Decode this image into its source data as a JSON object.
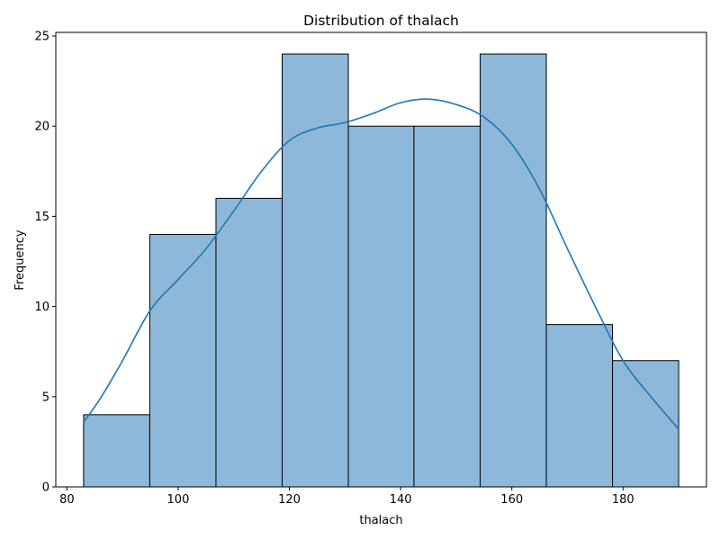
{
  "chart_data": {
    "type": "bar",
    "title": "Distribution of thalach",
    "xlabel": "thalach",
    "ylabel": "Frequency",
    "xlim": [
      78,
      195
    ],
    "ylim": [
      0,
      25.2
    ],
    "xticks": [
      80,
      100,
      120,
      140,
      160,
      180
    ],
    "yticks": [
      0,
      5,
      10,
      15,
      20,
      25
    ],
    "grid": false,
    "bar_color": "#8db8d9",
    "edge_color": "#000000",
    "kde_color": "#1f77b4",
    "bins": [
      {
        "x0": 83.0,
        "x1": 94.9,
        "count": 4
      },
      {
        "x0": 94.9,
        "x1": 106.8,
        "count": 14
      },
      {
        "x0": 106.8,
        "x1": 118.7,
        "count": 16
      },
      {
        "x0": 118.7,
        "x1": 130.6,
        "count": 24
      },
      {
        "x0": 130.6,
        "x1": 142.4,
        "count": 20
      },
      {
        "x0": 142.4,
        "x1": 154.3,
        "count": 20
      },
      {
        "x0": 154.3,
        "x1": 166.2,
        "count": 24
      },
      {
        "x0": 166.2,
        "x1": 178.1,
        "count": 9
      },
      {
        "x0": 178.1,
        "x1": 190.0,
        "count": 7
      }
    ],
    "kde": {
      "x": [
        83,
        86,
        90,
        95,
        100,
        105,
        110,
        115,
        120,
        125,
        130,
        135,
        140,
        145,
        150,
        155,
        160,
        165,
        170,
        175,
        180,
        185,
        190
      ],
      "y": [
        3.6,
        4.9,
        7.0,
        9.8,
        11.5,
        13.2,
        15.3,
        17.5,
        19.2,
        19.9,
        20.2,
        20.7,
        21.3,
        21.5,
        21.2,
        20.5,
        19.0,
        16.5,
        13.2,
        10.0,
        7.0,
        5.0,
        3.2
      ]
    }
  }
}
